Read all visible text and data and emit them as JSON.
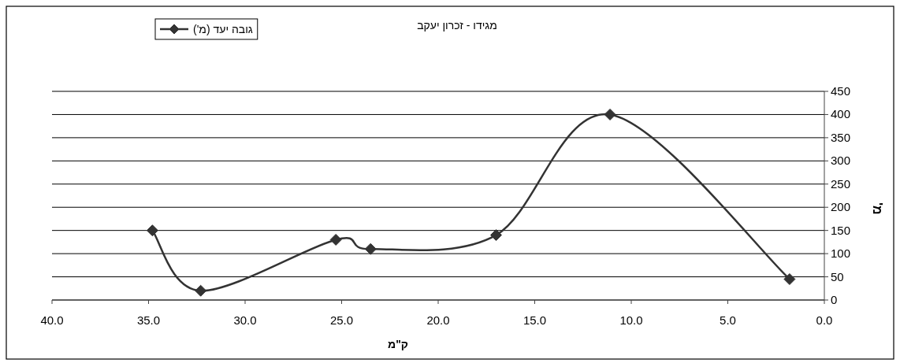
{
  "chart_data": {
    "type": "line",
    "title": "מגידו - זכרון יעקב",
    "xlabel": "ק\"מ",
    "ylabel": "מ'",
    "x": [
      34.8,
      32.3,
      25.3,
      23.5,
      17.0,
      11.1,
      1.8
    ],
    "series": [
      {
        "name": "גובה יעד (מ')",
        "color": "#333333",
        "values": [
          150,
          20,
          130,
          110,
          140,
          400,
          45
        ]
      }
    ],
    "xlim": [
      40,
      0
    ],
    "xticks": [
      {
        "value": 40,
        "label": "40.0"
      },
      {
        "value": 35,
        "label": "35.0"
      },
      {
        "value": 30,
        "label": "30.0"
      },
      {
        "value": 25,
        "label": "25.0"
      },
      {
        "value": 20,
        "label": "20.0"
      },
      {
        "value": 15,
        "label": "15.0"
      },
      {
        "value": 10,
        "label": "10.0"
      },
      {
        "value": 5,
        "label": "5.0"
      },
      {
        "value": 0,
        "label": "0.0"
      }
    ],
    "ylim": [
      0,
      450
    ],
    "yticks": [
      0,
      50,
      100,
      150,
      200,
      250,
      300,
      350,
      400,
      450
    ],
    "grid": "y",
    "legend": "top left",
    "marker": "diamond",
    "line_style": "solid"
  }
}
